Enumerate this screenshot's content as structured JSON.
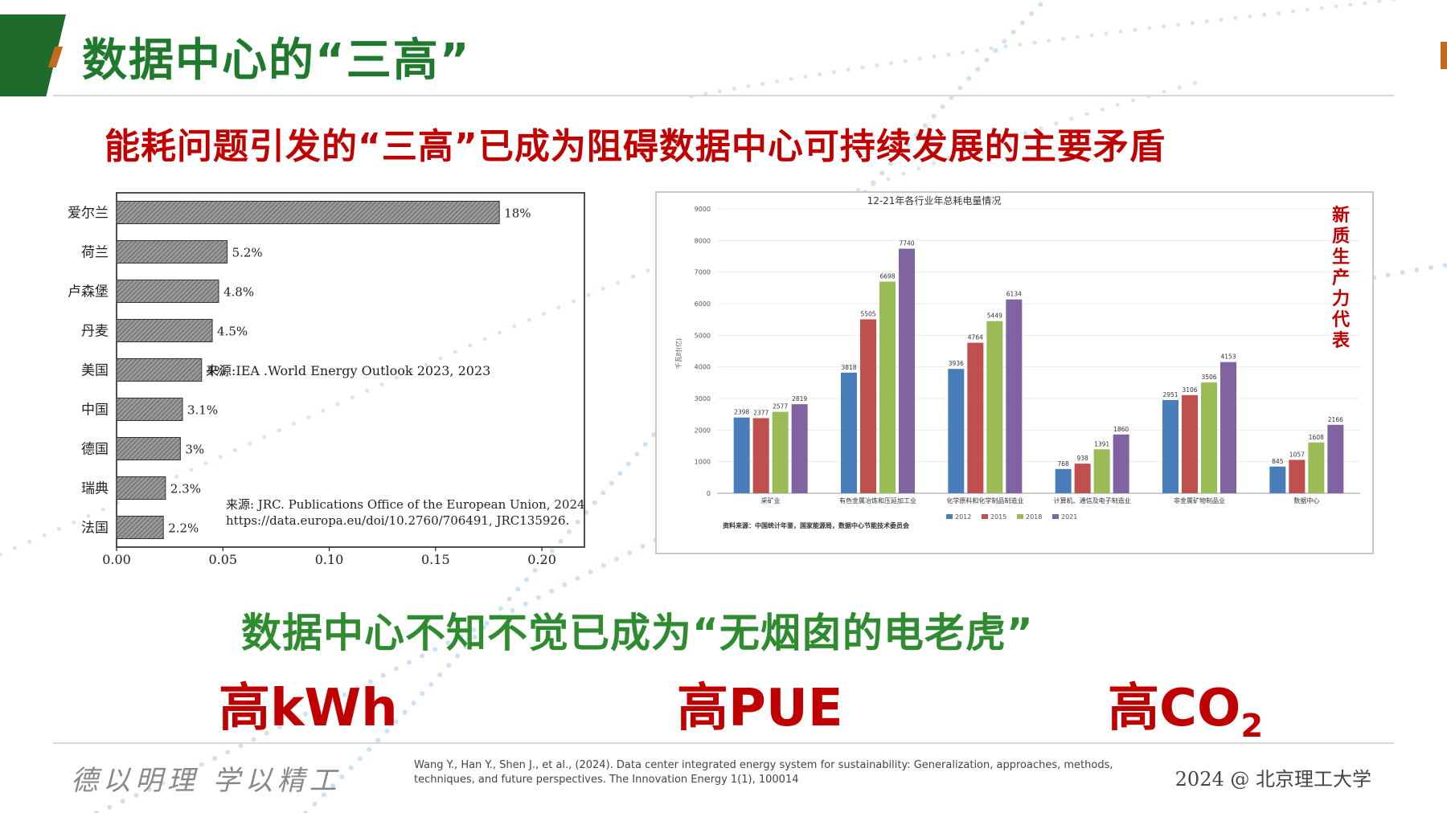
{
  "slide": {
    "title": "数据中心的“三高”",
    "headline": "能耗问题引发的“三高”已成为阻碍数据中心可持续发展的主要矛盾",
    "side_label": [
      "新",
      "质",
      "生",
      "产",
      "力",
      "代",
      "表"
    ],
    "slogan": "数据中心不知不觉已成为“无烟囱的电老虎”",
    "metrics": {
      "kwh": "高kWh",
      "pue": "高PUE",
      "co2_main": "高CO",
      "co2_sub": "2"
    },
    "footer": {
      "motto": "德以明理  学以精工",
      "reference": "Wang Y., Han Y., Shen J., et al., (2024). Data center integrated energy system for sustainability: Generalization, approaches, methods, techniques, and future perspectives. The Innovation Energy 1(1), 100014",
      "copyright": "2024 @ 北京理工大学"
    }
  },
  "chart_data": [
    {
      "type": "bar",
      "orientation": "horizontal",
      "categories": [
        "爱尔兰",
        "荷兰",
        "卢森堡",
        "丹麦",
        "美国",
        "中国",
        "德国",
        "瑞典",
        "法国"
      ],
      "values": [
        0.18,
        0.052,
        0.048,
        0.045,
        0.04,
        0.031,
        0.03,
        0.023,
        0.022
      ],
      "value_labels": [
        "18%",
        "5.2%",
        "4.8%",
        "4.5%",
        "4%",
        "3.1%",
        "3%",
        "2.3%",
        "2.2%"
      ],
      "xlim": [
        0,
        0.22
      ],
      "xticks": [
        "0.00",
        "0.05",
        "0.10",
        "0.15",
        "0.20"
      ],
      "annotation_iea": "来源:IEA .World Energy Outlook 2023, 2023",
      "annotation_jrc_1": "来源: JRC. Publications Office of the European Union, 2024",
      "annotation_jrc_2": "https://data.europa.eu/doi/10.2760/706491, JRC135926."
    },
    {
      "type": "bar",
      "title": "12-21年各行业年总耗电量情况",
      "ylabel": "千瓦时(亿)",
      "ylim": [
        0,
        9000
      ],
      "yticks": [
        "9000",
        "8000",
        "7000",
        "6000",
        "5000",
        "4000",
        "3000",
        "2000",
        "1000",
        "0"
      ],
      "categories": [
        "采矿业",
        "有色金属冶炼和压延加工业",
        "化学原料和化学制品制造业",
        "计算机、通信及电子制造业",
        "非金属矿物制品业",
        "数据中心"
      ],
      "series": [
        {
          "name": "2012",
          "color": "#4a7ebb",
          "values": [
            2398,
            3818,
            3936,
            768,
            2951,
            845
          ]
        },
        {
          "name": "2015",
          "color": "#c0504d",
          "values": [
            2377,
            5505,
            4764,
            938,
            3106,
            1057
          ]
        },
        {
          "name": "2018",
          "color": "#9bbb59",
          "values": [
            2577,
            6698,
            5449,
            1391,
            3506,
            1608
          ]
        },
        {
          "name": "2021",
          "color": "#8064a2",
          "values": [
            2819,
            7740,
            6134,
            1860,
            4153,
            2166
          ]
        }
      ],
      "value_labels": [
        [
          "2398",
          "2377",
          "2577",
          "2819"
        ],
        [
          "3818",
          "5505",
          "6698",
          "7740"
        ],
        [
          "3936",
          "4764",
          "5449",
          "6134"
        ],
        [
          "768",
          "938",
          "1391",
          "1860"
        ],
        [
          "2951",
          "3106",
          "3506",
          "4153"
        ],
        [
          "845",
          "1057",
          "1608",
          "2166"
        ]
      ],
      "source": "资料来源：中国统计年鉴，国家能源局，数据中心节能技术委员会",
      "legend_position": "bottom"
    }
  ]
}
